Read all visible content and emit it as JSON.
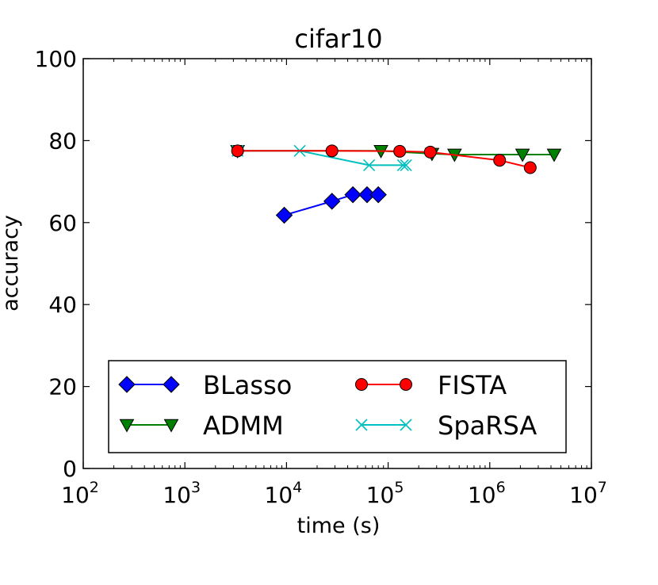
{
  "chart_data": {
    "type": "line",
    "title": "cifar10",
    "xlabel": "time (s)",
    "ylabel": "accuracy",
    "xscale": "log",
    "xlim": [
      100,
      10000000
    ],
    "ylim": [
      0,
      100
    ],
    "x_ticks": [
      {
        "base": "10",
        "exp": "2",
        "value": 100
      },
      {
        "base": "10",
        "exp": "3",
        "value": 1000
      },
      {
        "base": "10",
        "exp": "4",
        "value": 10000
      },
      {
        "base": "10",
        "exp": "5",
        "value": 100000
      },
      {
        "base": "10",
        "exp": "6",
        "value": 1000000
      },
      {
        "base": "10",
        "exp": "7",
        "value": 10000000
      }
    ],
    "y_ticks": [
      {
        "label": "0",
        "value": 0
      },
      {
        "label": "20",
        "value": 20
      },
      {
        "label": "40",
        "value": 40
      },
      {
        "label": "60",
        "value": 60
      },
      {
        "label": "80",
        "value": 80
      },
      {
        "label": "100",
        "value": 100
      }
    ],
    "grid": false,
    "legend_position": "lower-center",
    "series": [
      {
        "name": "BLasso",
        "color": "#0000ff",
        "marker": "diamond",
        "x": [
          9500,
          28000,
          45000,
          62000,
          80000
        ],
        "y": [
          61.8,
          65.2,
          66.8,
          66.8,
          66.8
        ]
      },
      {
        "name": "FISTA",
        "color": "#ff0000",
        "marker": "circle",
        "x": [
          3300,
          28000,
          130000,
          260000,
          1250000,
          2500000
        ],
        "y": [
          77.5,
          77.5,
          77.4,
          77.2,
          75.2,
          73.4
        ]
      },
      {
        "name": "ADMM",
        "color": "#008000",
        "marker": "triangle-down",
        "x": [
          3300,
          85000,
          270000,
          450000,
          2100000,
          4300000
        ],
        "y": [
          77.5,
          77.5,
          76.8,
          76.6,
          76.6,
          76.6
        ]
      },
      {
        "name": "SpaRSA",
        "color": "#00bfbf",
        "marker": "x",
        "x": [
          3300,
          13500,
          65000,
          140000,
          150000
        ],
        "y": [
          77.5,
          77.5,
          74.0,
          74.0,
          74.0
        ]
      }
    ]
  }
}
